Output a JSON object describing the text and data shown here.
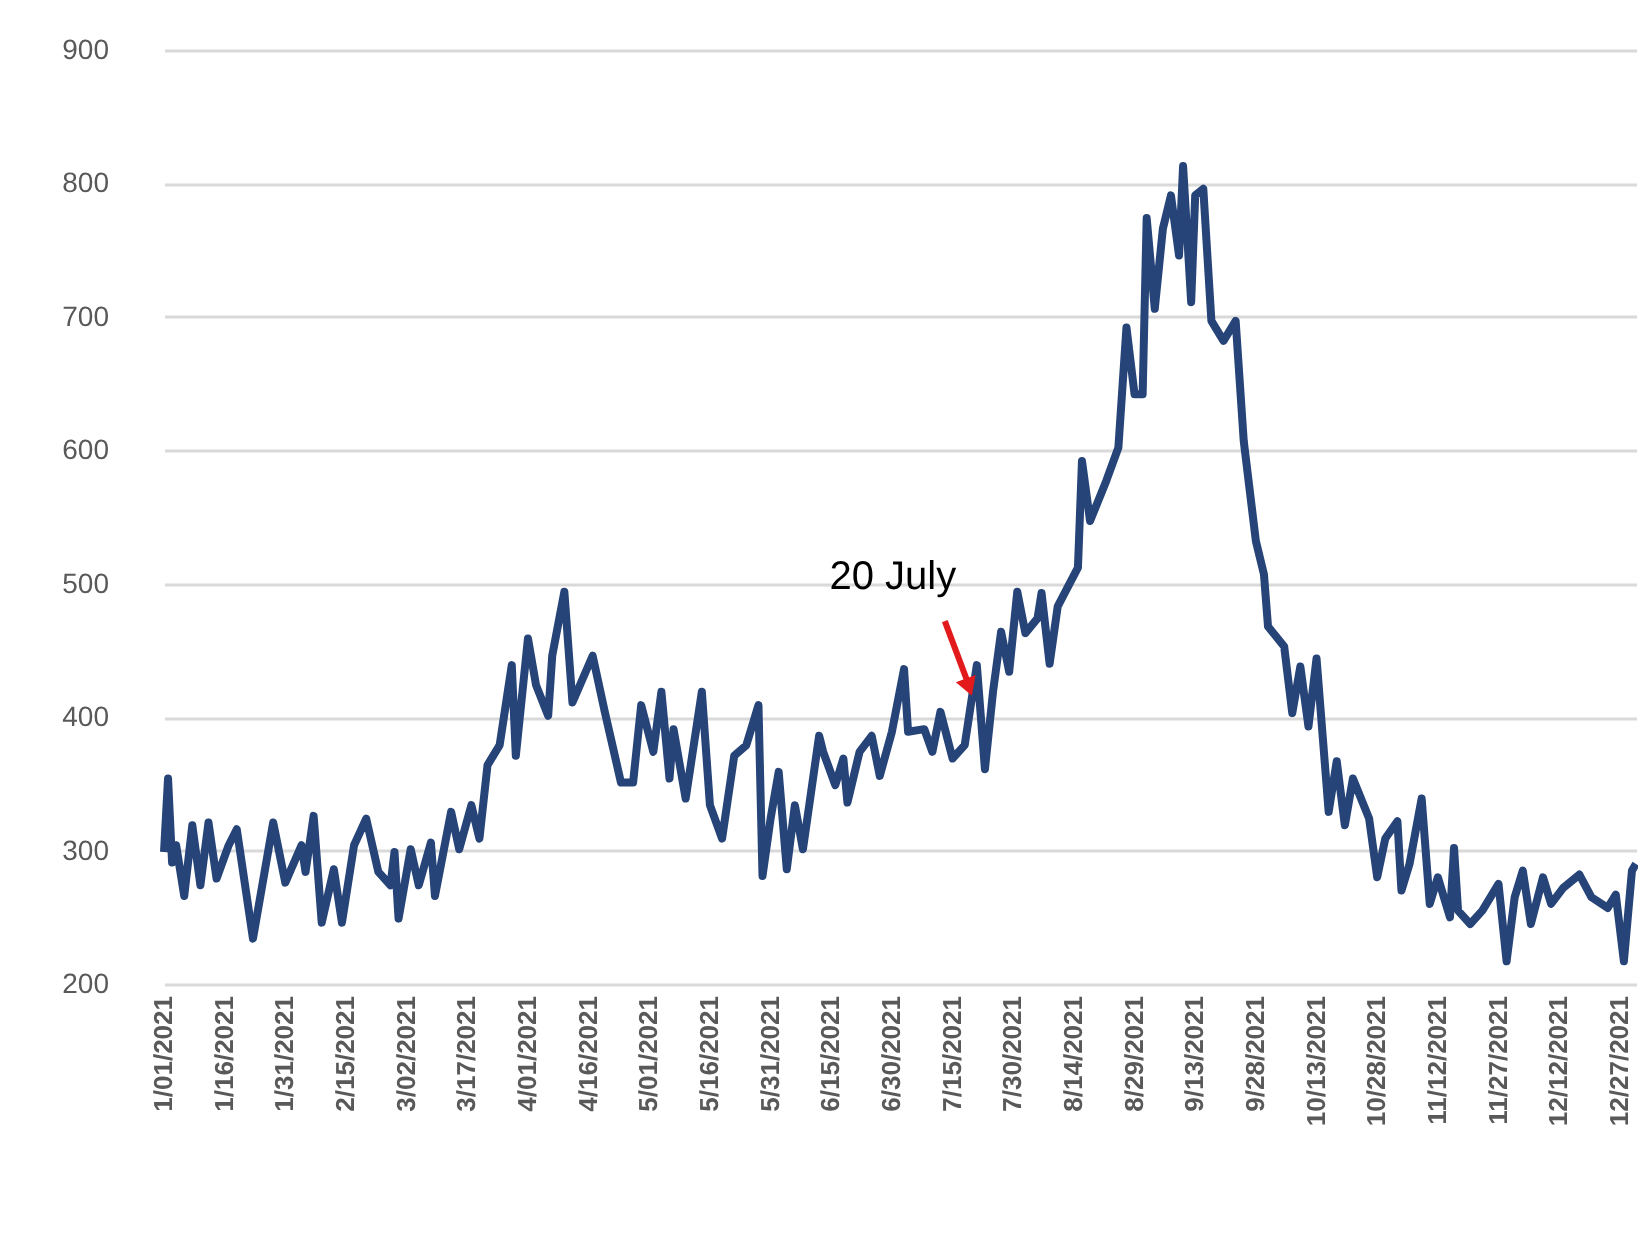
{
  "chart_data": {
    "type": "line",
    "annotations": [
      {
        "text": "20 July",
        "x": "2021-07-20",
        "y": 412
      }
    ],
    "xlim": [
      "2021-01-01",
      "2021-12-31"
    ],
    "xticks": [
      {
        "value": "2021-01-01",
        "label": "1/01/2021"
      },
      {
        "value": "2021-01-16",
        "label": "1/16/2021"
      },
      {
        "value": "2021-01-31",
        "label": "1/31/2021"
      },
      {
        "value": "2021-02-15",
        "label": "2/15/2021"
      },
      {
        "value": "2021-03-02",
        "label": "3/02/2021"
      },
      {
        "value": "2021-03-17",
        "label": "3/17/2021"
      },
      {
        "value": "2021-04-01",
        "label": "4/01/2021"
      },
      {
        "value": "2021-04-16",
        "label": "4/16/2021"
      },
      {
        "value": "2021-05-01",
        "label": "5/01/2021"
      },
      {
        "value": "2021-05-16",
        "label": "5/16/2021"
      },
      {
        "value": "2021-05-31",
        "label": "5/31/2021"
      },
      {
        "value": "2021-06-15",
        "label": "6/15/2021"
      },
      {
        "value": "2021-06-30",
        "label": "6/30/2021"
      },
      {
        "value": "2021-07-15",
        "label": "7/15/2021"
      },
      {
        "value": "2021-07-30",
        "label": "7/30/2021"
      },
      {
        "value": "2021-08-14",
        "label": "8/14/2021"
      },
      {
        "value": "2021-08-29",
        "label": "8/29/2021"
      },
      {
        "value": "2021-09-13",
        "label": "9/13/2021"
      },
      {
        "value": "2021-09-28",
        "label": "9/28/2021"
      },
      {
        "value": "2021-10-13",
        "label": "10/13/2021"
      },
      {
        "value": "2021-10-28",
        "label": "10/28/2021"
      },
      {
        "value": "2021-11-12",
        "label": "11/12/2021"
      },
      {
        "value": "2021-11-27",
        "label": "11/27/2021"
      },
      {
        "value": "2021-12-12",
        "label": "12/12/2021"
      },
      {
        "value": "2021-12-27",
        "label": "12/27/2021"
      }
    ],
    "ylim": [
      200,
      900
    ],
    "yticks": [
      200,
      300,
      400,
      500,
      600,
      700,
      800,
      900
    ],
    "grid": "y",
    "x": [
      "2021-01-01",
      "2021-01-02",
      "2021-01-03",
      "2021-01-04",
      "2021-01-06",
      "2021-01-08",
      "2021-01-10",
      "2021-01-12",
      "2021-01-14",
      "2021-01-17",
      "2021-01-19",
      "2021-01-23",
      "2021-01-28",
      "2021-01-31",
      "2021-02-04",
      "2021-02-05",
      "2021-02-07",
      "2021-02-09",
      "2021-02-12",
      "2021-02-14",
      "2021-02-17",
      "2021-02-20",
      "2021-02-23",
      "2021-02-26",
      "2021-02-27",
      "2021-02-28",
      "2021-03-03",
      "2021-03-05",
      "2021-03-08",
      "2021-03-09",
      "2021-03-13",
      "2021-03-15",
      "2021-03-18",
      "2021-03-20",
      "2021-03-22",
      "2021-03-25",
      "2021-03-28",
      "2021-03-29",
      "2021-04-01",
      "2021-04-03",
      "2021-04-06",
      "2021-04-07",
      "2021-04-10",
      "2021-04-12",
      "2021-04-17",
      "2021-04-20",
      "2021-04-24",
      "2021-04-27",
      "2021-04-29",
      "2021-05-02",
      "2021-05-04",
      "2021-05-06",
      "2021-05-07",
      "2021-05-10",
      "2021-05-14",
      "2021-05-16",
      "2021-05-19",
      "2021-05-22",
      "2021-05-25",
      "2021-05-28",
      "2021-05-29",
      "2021-05-31",
      "2021-06-02",
      "2021-06-04",
      "2021-06-06",
      "2021-06-08",
      "2021-06-12",
      "2021-06-13",
      "2021-06-16",
      "2021-06-18",
      "2021-06-19",
      "2021-06-22",
      "2021-06-25",
      "2021-06-27",
      "2021-06-30",
      "2021-07-03",
      "2021-07-04",
      "2021-07-08",
      "2021-07-10",
      "2021-07-12",
      "2021-07-15",
      "2021-07-18",
      "2021-07-21",
      "2021-07-23",
      "2021-07-25",
      "2021-07-27",
      "2021-07-29",
      "2021-07-31",
      "2021-08-02",
      "2021-08-05",
      "2021-08-06",
      "2021-08-08",
      "2021-08-10",
      "2021-08-15",
      "2021-08-16",
      "2021-08-18",
      "2021-08-22",
      "2021-08-25",
      "2021-08-27",
      "2021-08-29",
      "2021-08-31",
      "2021-09-01",
      "2021-09-03",
      "2021-09-05",
      "2021-09-07",
      "2021-09-09",
      "2021-09-10",
      "2021-09-12",
      "2021-09-13",
      "2021-09-15",
      "2021-09-17",
      "2021-09-20",
      "2021-09-23",
      "2021-09-25",
      "2021-09-28",
      "2021-09-30",
      "2021-10-01",
      "2021-10-05",
      "2021-10-07",
      "2021-10-09",
      "2021-10-11",
      "2021-10-13",
      "2021-10-16",
      "2021-10-18",
      "2021-10-20",
      "2021-10-22",
      "2021-10-26",
      "2021-10-28",
      "2021-10-30",
      "2021-11-02",
      "2021-11-03",
      "2021-11-05",
      "2021-11-08",
      "2021-11-10",
      "2021-11-12",
      "2021-11-15",
      "2021-11-16",
      "2021-11-17",
      "2021-11-20",
      "2021-11-23",
      "2021-11-27",
      "2021-11-29",
      "2021-12-01",
      "2021-12-03",
      "2021-12-05",
      "2021-12-08",
      "2021-12-10",
      "2021-12-13",
      "2021-12-17",
      "2021-12-20",
      "2021-12-24",
      "2021-12-26",
      "2021-12-28",
      "2021-12-30",
      "2021-12-31"
    ],
    "series": [
      {
        "color": "#264478",
        "values": [
          299,
          354,
          291,
          304,
          266,
          319,
          274,
          321,
          279,
          304,
          316,
          234,
          321,
          276,
          304,
          284,
          326,
          246,
          286,
          246,
          304,
          324,
          284,
          274,
          299,
          249,
          301,
          274,
          306,
          266,
          329,
          301,
          334,
          309,
          364,
          379,
          439,
          371,
          459,
          424,
          401,
          446,
          494,
          411,
          446,
          404,
          351,
          351,
          409,
          374,
          419,
          354,
          391,
          339,
          419,
          334,
          309,
          371,
          379,
          409,
          281,
          324,
          359,
          286,
          334,
          301,
          386,
          374,
          349,
          369,
          336,
          374,
          386,
          356,
          389,
          436,
          389,
          391,
          374,
          404,
          369,
          379,
          439,
          361,
          419,
          464,
          434,
          494,
          463,
          474,
          493,
          440,
          483,
          512,
          592,
          547,
          577,
          602,
          692,
          642,
          642,
          774,
          706,
          766,
          791,
          746,
          813,
          711,
          791,
          796,
          697,
          682,
          697,
          607,
          532,
          507,
          468,
          453,
          403,
          438,
          393,
          444,
          329,
          367,
          319,
          354,
          324,
          280,
          309,
          322,
          270,
          290,
          339,
          260,
          280,
          250,
          302,
          255,
          245,
          255,
          275,
          217,
          265,
          285,
          245,
          280,
          260,
          272,
          282,
          265,
          257,
          267,
          217,
          285,
          290
        ]
      }
    ]
  }
}
